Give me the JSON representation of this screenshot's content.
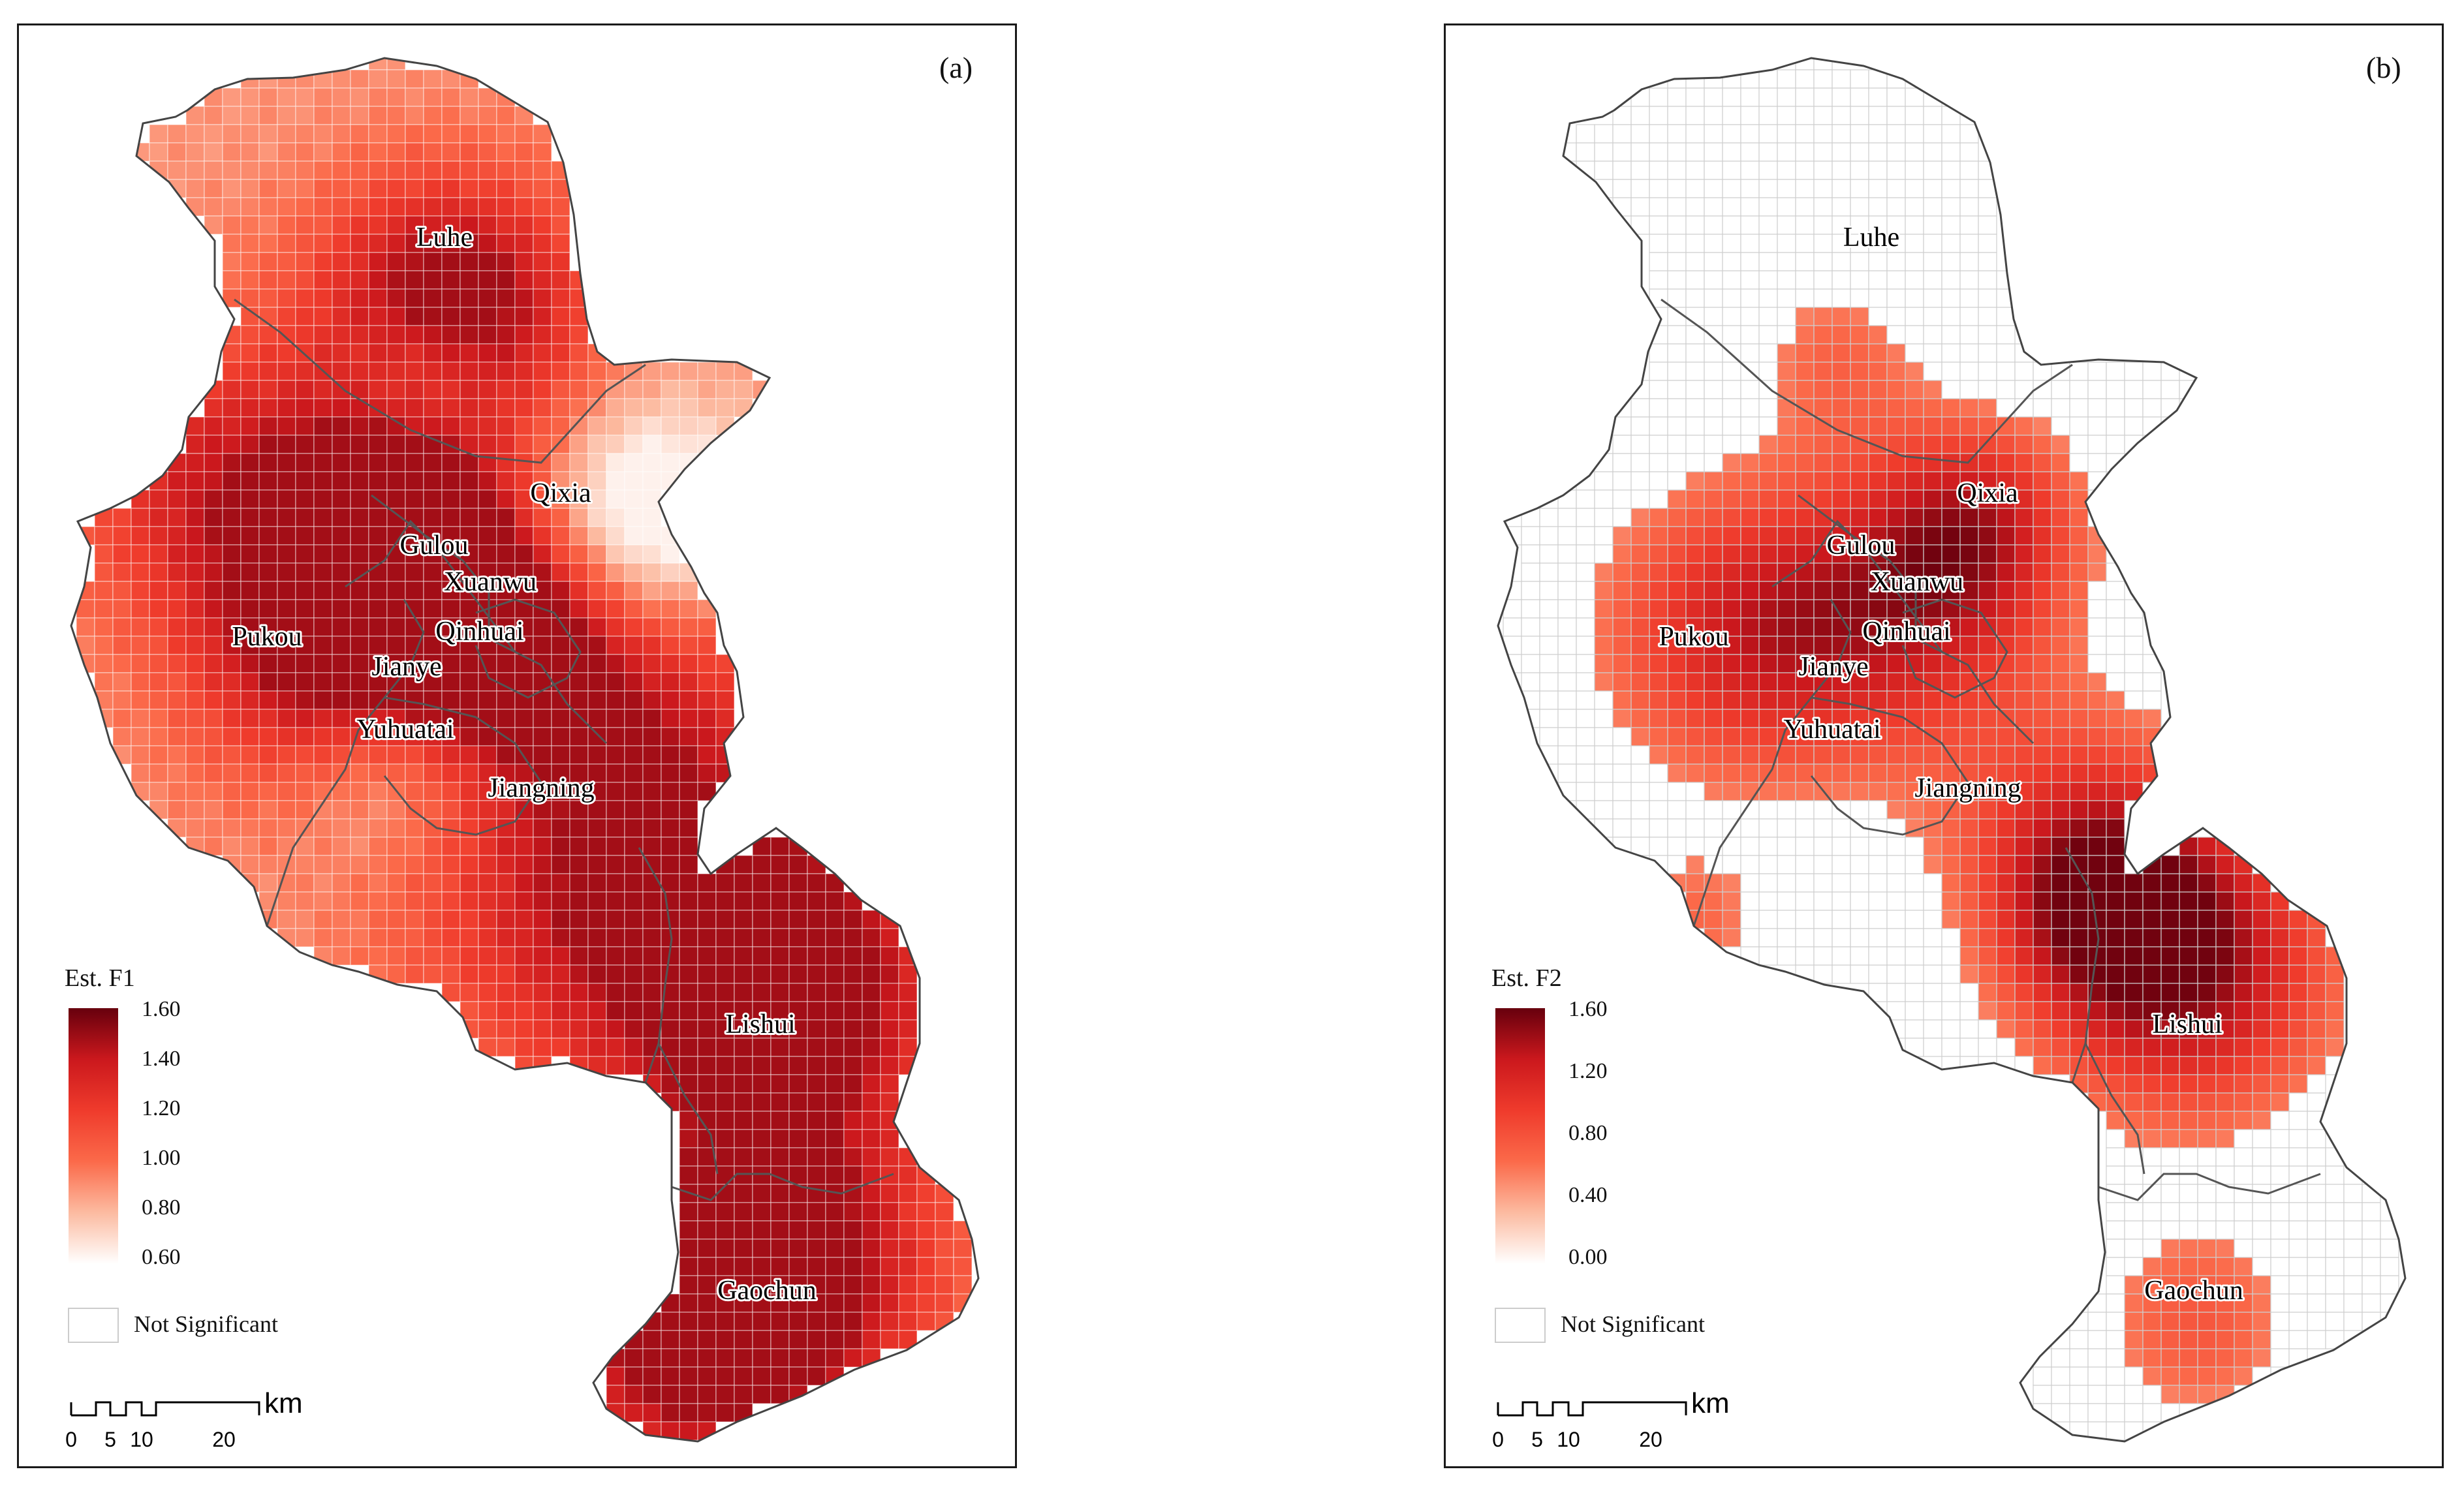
{
  "panels": [
    {
      "id": "a",
      "label": "(a)",
      "legend": {
        "title": "Est. F1",
        "ticks": [
          "1.60",
          "1.40",
          "1.20",
          "1.00",
          "0.80",
          "0.60"
        ],
        "min": 0.6,
        "max": 1.6,
        "not_significant_label": "Not Significant",
        "colors": [
          "#ffffff",
          "#fcbba1",
          "#fb6a4a",
          "#ef3b2c",
          "#cb181d",
          "#67000d"
        ]
      },
      "scale_bar": {
        "ticks": [
          "0",
          "5",
          "10",
          "20"
        ],
        "unit": "km"
      },
      "districts": [
        "Luhe",
        "Qixia",
        "Gulou",
        "Xuanwu",
        "Qinhuai",
        "Pukou",
        "Jianye",
        "Yuhuatai",
        "Jiangning",
        "Lishui",
        "Gaochun"
      ]
    },
    {
      "id": "b",
      "label": "(b)",
      "legend": {
        "title": "Est. F2",
        "ticks": [
          "1.60",
          "1.20",
          "0.80",
          "0.40",
          "0.00"
        ],
        "min": 0.0,
        "max": 1.6,
        "not_significant_label": "Not Significant",
        "colors": [
          "#ffffff",
          "#fcbba1",
          "#fb6a4a",
          "#ef3b2c",
          "#cb181d",
          "#67000d"
        ]
      },
      "scale_bar": {
        "ticks": [
          "0",
          "5",
          "10",
          "20"
        ],
        "unit": "km"
      },
      "districts": [
        "Luhe",
        "Qixia",
        "Gulou",
        "Xuanwu",
        "Qinhuai",
        "Pukou",
        "Jianye",
        "Yuhuatai",
        "Jiangning",
        "Lishui",
        "Gaochun"
      ]
    }
  ]
}
